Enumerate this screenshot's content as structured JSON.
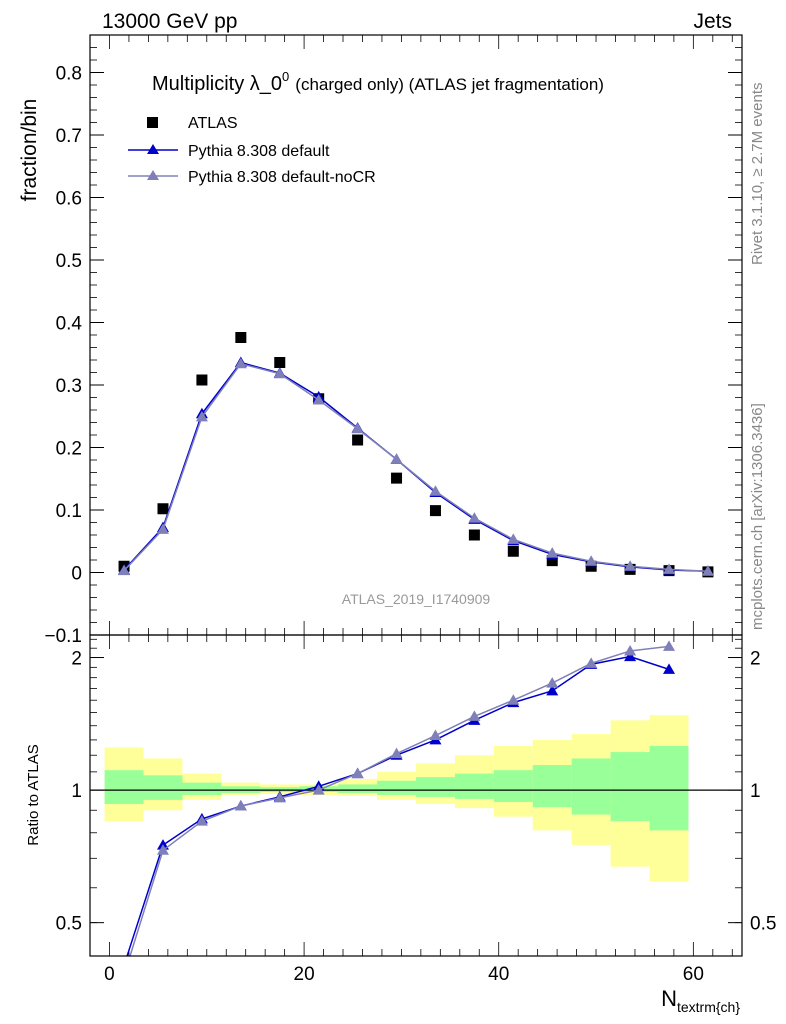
{
  "header": {
    "left": "13000 GeV pp",
    "right": "Jets"
  },
  "side_labels": {
    "rivet": "Rivet 3.1.10, ≥ 2.7M events",
    "mcplots": "mcplots.cern.ch [arXiv:1306.3436]"
  },
  "chart_data": [
    {
      "type": "scatter",
      "panel": "main",
      "title": "Multiplicity λ_0",
      "title_superscript": "0",
      "title_suffix": "(charged only) (ATLAS jet fragmentation)",
      "ylabel": "fraction/bin",
      "watermark": "ATLAS_2019_I1740909",
      "xlim": [
        -2,
        65
      ],
      "ylim": [
        -0.1,
        0.86
      ],
      "yticks": [
        -0.1,
        0,
        0.1,
        0.2,
        0.3,
        0.4,
        0.5,
        0.6,
        0.7,
        0.8
      ],
      "ytick_labels": [
        "−0.1",
        "0",
        "0.1",
        "0.2",
        "0.3",
        "0.4",
        "0.5",
        "0.6",
        "0.7",
        "0.8"
      ],
      "legend_placement": "top-left",
      "series": [
        {
          "name": "ATLAS",
          "style": "square-marker",
          "color": "#000000",
          "x": [
            1.5,
            5.5,
            9.5,
            13.5,
            17.5,
            21.5,
            25.5,
            29.5,
            33.5,
            37.5,
            41.5,
            45.5,
            49.5,
            53.5,
            57.5,
            61.5
          ],
          "values": [
            0.01,
            0.102,
            0.308,
            0.376,
            0.336,
            0.278,
            0.212,
            0.151,
            0.099,
            0.06,
            0.034,
            0.019,
            0.01,
            0.005,
            0.003,
            0.001
          ]
        },
        {
          "name": "Pythia 8.308 default",
          "style": "line-triangle",
          "color": "#0000cc",
          "x": [
            1.5,
            5.5,
            9.5,
            13.5,
            17.5,
            21.5,
            25.5,
            29.5,
            33.5,
            37.5,
            41.5,
            45.5,
            49.5,
            53.5,
            57.5,
            61.5
          ],
          "values": [
            0.004,
            0.072,
            0.254,
            0.336,
            0.319,
            0.281,
            0.231,
            0.181,
            0.128,
            0.085,
            0.051,
            0.029,
            0.017,
            0.009,
            0.004,
            0.002
          ]
        },
        {
          "name": "Pythia 8.308 default-noCR",
          "style": "line-triangle",
          "color": "#8080b8",
          "x": [
            1.5,
            5.5,
            9.5,
            13.5,
            17.5,
            21.5,
            25.5,
            29.5,
            33.5,
            37.5,
            41.5,
            45.5,
            49.5,
            53.5,
            57.5,
            61.5
          ],
          "values": [
            0.003,
            0.069,
            0.249,
            0.334,
            0.318,
            0.276,
            0.23,
            0.181,
            0.13,
            0.087,
            0.053,
            0.031,
            0.018,
            0.01,
            0.005,
            0.002
          ]
        }
      ]
    },
    {
      "type": "line",
      "panel": "ratio",
      "ylabel": "Ratio to ATLAS",
      "xlabel": "N",
      "xlabel_subscript": "textrm{ch}",
      "xlim": [
        -2,
        65
      ],
      "ylim": [
        0.42,
        2.25
      ],
      "yscale": "log",
      "xticks": [
        0,
        20,
        40,
        60
      ],
      "yticks": [
        0.5,
        1,
        2
      ],
      "reference_line": 1,
      "bands": [
        {
          "name": "total",
          "color": "#ffff99",
          "bins": [
            {
              "x0": -0.5,
              "x1": 3.5,
              "lo": 0.85,
              "hi": 1.25
            },
            {
              "x0": 3.5,
              "x1": 7.5,
              "lo": 0.9,
              "hi": 1.18
            },
            {
              "x0": 7.5,
              "x1": 11.5,
              "lo": 0.95,
              "hi": 1.09
            },
            {
              "x0": 11.5,
              "x1": 15.5,
              "lo": 0.975,
              "hi": 1.04
            },
            {
              "x0": 15.5,
              "x1": 19.5,
              "lo": 0.98,
              "hi": 1.03
            },
            {
              "x0": 19.5,
              "x1": 23.5,
              "lo": 0.975,
              "hi": 1.03
            },
            {
              "x0": 23.5,
              "x1": 27.5,
              "lo": 0.97,
              "hi": 1.06
            },
            {
              "x0": 27.5,
              "x1": 31.5,
              "lo": 0.95,
              "hi": 1.1
            },
            {
              "x0": 31.5,
              "x1": 35.5,
              "lo": 0.93,
              "hi": 1.15
            },
            {
              "x0": 35.5,
              "x1": 39.5,
              "lo": 0.91,
              "hi": 1.2
            },
            {
              "x0": 39.5,
              "x1": 43.5,
              "lo": 0.87,
              "hi": 1.26
            },
            {
              "x0": 43.5,
              "x1": 47.5,
              "lo": 0.81,
              "hi": 1.3
            },
            {
              "x0": 47.5,
              "x1": 51.5,
              "lo": 0.75,
              "hi": 1.34
            },
            {
              "x0": 51.5,
              "x1": 55.5,
              "lo": 0.67,
              "hi": 1.44
            },
            {
              "x0": 55.5,
              "x1": 59.5,
              "lo": 0.62,
              "hi": 1.48
            }
          ]
        },
        {
          "name": "stat",
          "color": "#99ff99",
          "bins": [
            {
              "x0": -0.5,
              "x1": 3.5,
              "lo": 0.93,
              "hi": 1.11
            },
            {
              "x0": 3.5,
              "x1": 7.5,
              "lo": 0.95,
              "hi": 1.08
            },
            {
              "x0": 7.5,
              "x1": 11.5,
              "lo": 0.975,
              "hi": 1.04
            },
            {
              "x0": 11.5,
              "x1": 15.5,
              "lo": 0.985,
              "hi": 1.02
            },
            {
              "x0": 15.5,
              "x1": 19.5,
              "lo": 0.99,
              "hi": 1.015
            },
            {
              "x0": 19.5,
              "x1": 23.5,
              "lo": 0.99,
              "hi": 1.02
            },
            {
              "x0": 23.5,
              "x1": 27.5,
              "lo": 0.985,
              "hi": 1.03
            },
            {
              "x0": 27.5,
              "x1": 31.5,
              "lo": 0.975,
              "hi": 1.05
            },
            {
              "x0": 31.5,
              "x1": 35.5,
              "lo": 0.965,
              "hi": 1.07
            },
            {
              "x0": 35.5,
              "x1": 39.5,
              "lo": 0.955,
              "hi": 1.09
            },
            {
              "x0": 39.5,
              "x1": 43.5,
              "lo": 0.94,
              "hi": 1.11
            },
            {
              "x0": 43.5,
              "x1": 47.5,
              "lo": 0.915,
              "hi": 1.14
            },
            {
              "x0": 47.5,
              "x1": 51.5,
              "lo": 0.88,
              "hi": 1.18
            },
            {
              "x0": 51.5,
              "x1": 55.5,
              "lo": 0.85,
              "hi": 1.22
            },
            {
              "x0": 55.5,
              "x1": 59.5,
              "lo": 0.81,
              "hi": 1.26
            }
          ]
        }
      ],
      "series": [
        {
          "name": "Pythia 8.308 default",
          "color": "#0000cc",
          "x": [
            1.5,
            5.5,
            9.5,
            13.5,
            17.5,
            21.5,
            25.5,
            29.5,
            33.5,
            37.5,
            41.5,
            45.5,
            49.5,
            53.5,
            57.5
          ],
          "values": [
            0.4,
            0.75,
            0.86,
            0.92,
            0.965,
            1.02,
            1.09,
            1.2,
            1.3,
            1.44,
            1.58,
            1.68,
            1.93,
            2.01,
            1.88
          ]
        },
        {
          "name": "Pythia 8.308 default-noCR",
          "color": "#8080b8",
          "x": [
            1.5,
            5.5,
            9.5,
            13.5,
            17.5,
            21.5,
            25.5,
            29.5,
            33.5,
            37.5,
            41.5,
            45.5,
            49.5,
            53.5,
            57.5
          ],
          "values": [
            0.38,
            0.73,
            0.85,
            0.92,
            0.96,
            1.0,
            1.09,
            1.21,
            1.33,
            1.47,
            1.6,
            1.75,
            1.94,
            2.07,
            2.12
          ]
        }
      ]
    }
  ]
}
